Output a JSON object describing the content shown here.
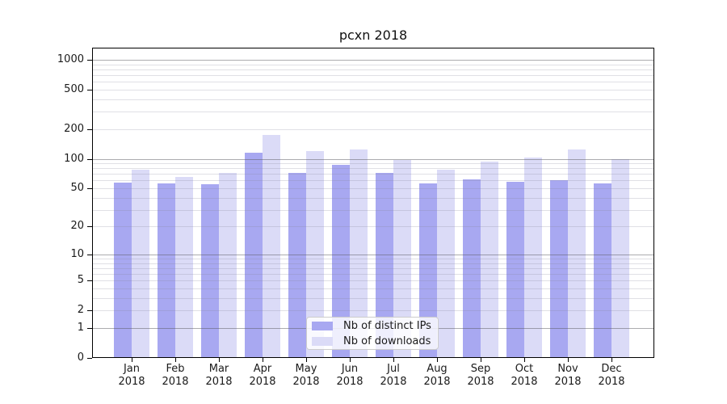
{
  "title": "pcxn 2018",
  "colors": {
    "distinct_ips": "#a8a8f1",
    "downloads": "#dbdbf7",
    "grid_major": "#b0b0b0",
    "grid_minor": "#e6e6e6",
    "axis_frame": "#000000",
    "text": "#1a1a1a"
  },
  "legend": {
    "items": [
      {
        "label": "Nb of distinct IPs",
        "color_key": "distinct_ips"
      },
      {
        "label": "Nb of downloads",
        "color_key": "downloads"
      }
    ]
  },
  "chart_data": {
    "type": "bar",
    "title": "pcxn 2018",
    "categories": [
      "Jan",
      "Feb",
      "Mar",
      "Apr",
      "May",
      "Jun",
      "Jul",
      "Aug",
      "Sep",
      "Oct",
      "Nov",
      "Dec"
    ],
    "year_label": "2018",
    "series": [
      {
        "name": "Nb of distinct IPs",
        "color_key": "distinct_ips",
        "values": [
          57,
          56,
          55,
          116,
          72,
          86,
          72,
          56,
          62,
          58,
          61,
          56
        ]
      },
      {
        "name": "Nb of downloads",
        "color_key": "downloads",
        "values": [
          78,
          65,
          72,
          176,
          120,
          125,
          97,
          77,
          93,
          102,
          125,
          99
        ]
      }
    ],
    "xlabel": "",
    "ylabel": "",
    "y_scale": "log10(1+v)",
    "ylim": [
      0,
      1320
    ],
    "y_ticks": [
      0,
      1,
      2,
      5,
      10,
      20,
      50,
      100,
      200,
      500,
      1000
    ],
    "y_grid_major": [
      1,
      10,
      100,
      1000
    ],
    "y_grid_minor": [
      2,
      3,
      4,
      5,
      6,
      7,
      8,
      9,
      20,
      30,
      40,
      50,
      60,
      70,
      80,
      90,
      200,
      300,
      400,
      500,
      600,
      700,
      800,
      900
    ],
    "grid": true,
    "legend_position": "lower center inside"
  }
}
